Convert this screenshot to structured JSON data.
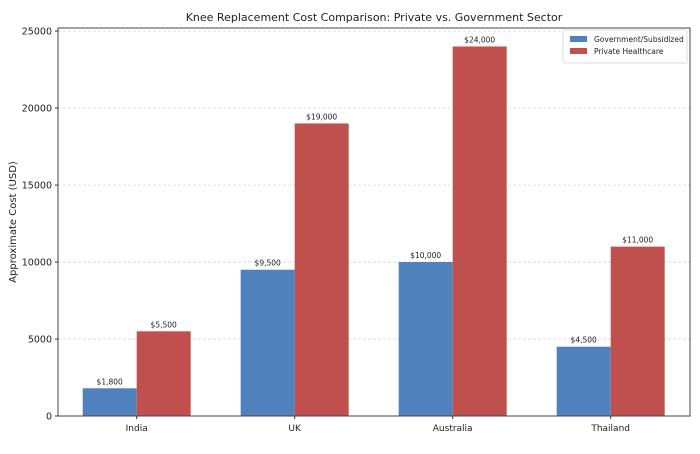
{
  "chart_data": {
    "type": "bar",
    "title": "Knee Replacement Cost Comparison: Private vs. Government Sector",
    "xlabel": "",
    "ylabel": "Approximate Cost (USD)",
    "categories": [
      "India",
      "UK",
      "Australia",
      "Thailand"
    ],
    "series": [
      {
        "name": "Government/Subsidized",
        "color": "#4f81bd",
        "values": [
          1800,
          9500,
          10000,
          4500
        ],
        "labels": [
          "$1,800",
          "$9,500",
          "$10,000",
          "$4,500"
        ]
      },
      {
        "name": "Private Healthcare",
        "color": "#c0504d",
        "values": [
          5500,
          19000,
          24000,
          11000
        ],
        "labels": [
          "$5,500",
          "$19,000",
          "$24,000",
          "$11,000"
        ]
      }
    ],
    "ylim": [
      0,
      25200
    ],
    "yticks": [
      0,
      5000,
      10000,
      15000,
      20000,
      25000
    ],
    "grid": "horizontal dashed",
    "legend": "top-right"
  }
}
